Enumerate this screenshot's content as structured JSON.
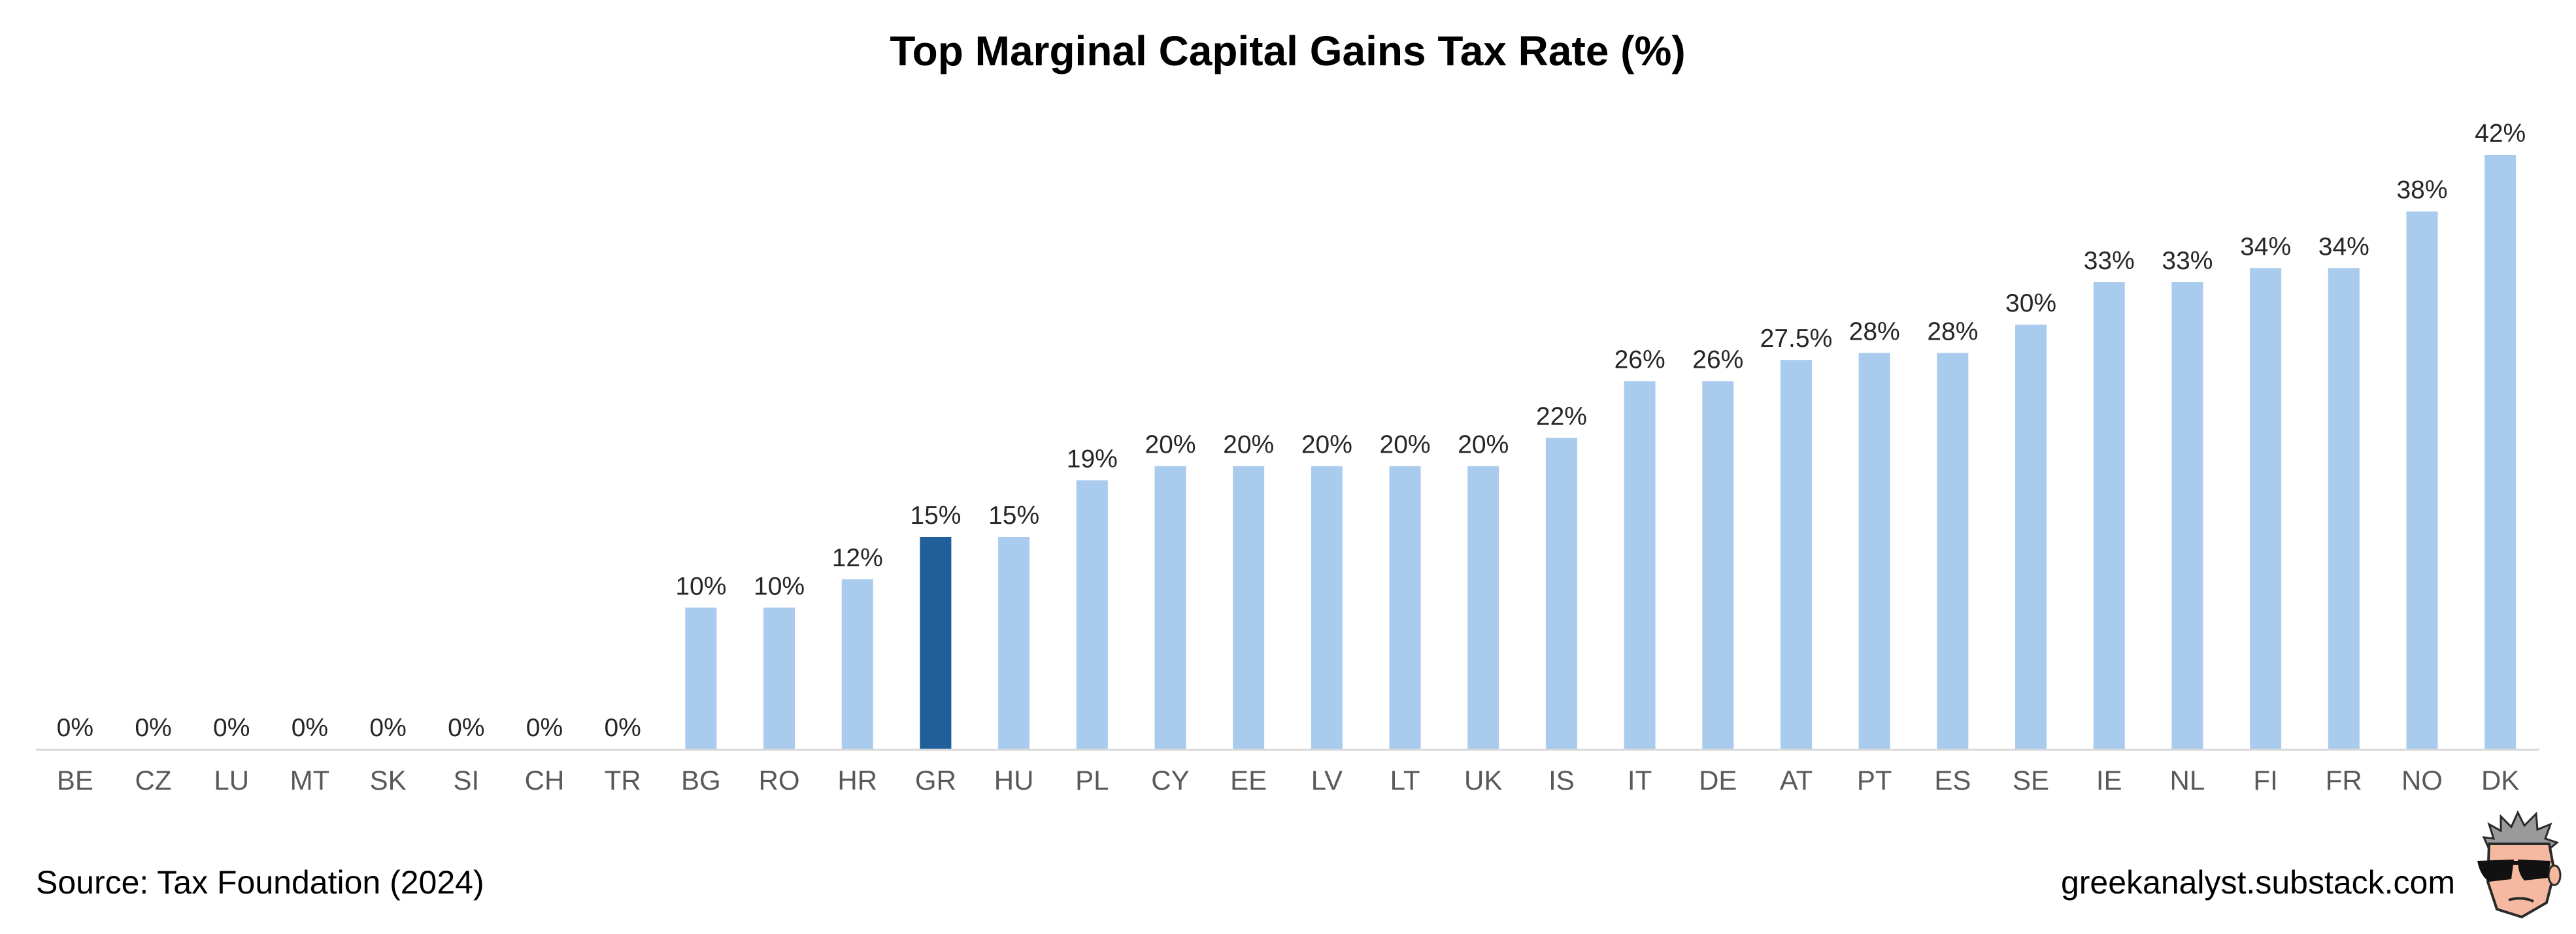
{
  "chart_data": {
    "type": "bar",
    "title": "Top Marginal Capital Gains Tax Rate (%)",
    "xlabel": "",
    "ylabel": "",
    "ylim": [
      0,
      42
    ],
    "grid": false,
    "legend": "none",
    "categories": [
      "BE",
      "CZ",
      "LU",
      "MT",
      "SK",
      "SI",
      "CH",
      "TR",
      "BG",
      "RO",
      "HR",
      "GR",
      "HU",
      "PL",
      "CY",
      "EE",
      "LV",
      "LT",
      "UK",
      "IS",
      "IT",
      "DE",
      "AT",
      "PT",
      "ES",
      "SE",
      "IE",
      "NL",
      "FI",
      "FR",
      "NO",
      "DK"
    ],
    "values": [
      0,
      0,
      0,
      0,
      0,
      0,
      0,
      0,
      10,
      10,
      12,
      15,
      15,
      19,
      20,
      20,
      20,
      20,
      20,
      22,
      26,
      26,
      27.5,
      28,
      28,
      30,
      33,
      33,
      34,
      34,
      38,
      42
    ],
    "value_labels": [
      "0%",
      "0%",
      "0%",
      "0%",
      "0%",
      "0%",
      "0%",
      "0%",
      "10%",
      "10%",
      "12%",
      "15%",
      "15%",
      "19%",
      "20%",
      "20%",
      "20%",
      "20%",
      "20%",
      "22%",
      "26%",
      "26%",
      "27.5%",
      "28%",
      "28%",
      "30%",
      "33%",
      "33%",
      "34%",
      "34%",
      "38%",
      "42%"
    ],
    "highlight_category": "GR",
    "colors": {
      "bar": "#A9CBED",
      "highlight": "#215F9A",
      "axis": "#D9D9D9"
    }
  },
  "footer": {
    "source": "Source: Tax Foundation (2024)",
    "site": "greekanalyst.substack.com"
  },
  "logo_icon": "cartoon-face-sunglasses-icon"
}
